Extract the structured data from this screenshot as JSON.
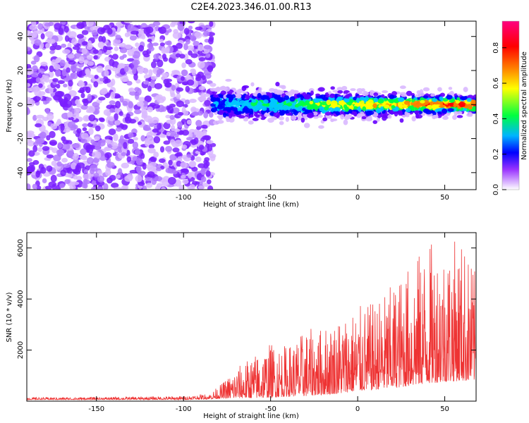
{
  "title": "C2E4.2023.346.01.00.R13",
  "chart_data": [
    {
      "type": "heatmap",
      "xlabel": "Height of straight line (km)",
      "ylabel": "Frequency (Hz)",
      "xlim": [
        -190,
        68
      ],
      "ylim": [
        -50,
        49
      ],
      "x_ticks": [
        -150,
        -100,
        -50,
        0,
        50
      ],
      "y_ticks": [
        -40,
        -20,
        0,
        20,
        40
      ],
      "grid": false,
      "colorbar": {
        "label": "Normalized spectral amplitude",
        "range": [
          0.0,
          0.95
        ],
        "ticks": [
          0.0,
          0.2,
          0.4,
          0.6,
          0.8
        ],
        "colors": [
          "#ffffff",
          "#6600ff",
          "#0000ff",
          "#00c8ff",
          "#00ff40",
          "#ffff00",
          "#ff8000",
          "#ff0000",
          "#ff0080"
        ]
      },
      "regions": [
        {
          "x": [
            -190,
            -83
          ],
          "description_level": 0.15,
          "spread_hz": 50
        },
        {
          "x": [
            -83,
            68
          ],
          "description_level": 0.6,
          "spread_hz": 5,
          "center_hz": 0
        }
      ]
    },
    {
      "type": "line",
      "xlabel": "Height of straight line (km)",
      "ylabel": "SNR (10 * v/v)",
      "xlim": [
        -190,
        68
      ],
      "ylim": [
        0,
        6600
      ],
      "x_ticks": [
        -150,
        -100,
        -50,
        0,
        50
      ],
      "y_ticks": [
        2000,
        4000,
        6000
      ],
      "color": "#ee3333",
      "grid": false,
      "envelope": {
        "x": [
          -190,
          -150,
          -100,
          -85,
          -78,
          -70,
          -60,
          -50,
          -40,
          -30,
          -20,
          -10,
          0,
          10,
          20,
          30,
          40,
          50,
          60,
          68
        ],
        "y_max": [
          150,
          160,
          200,
          300,
          700,
          1300,
          1800,
          2300,
          2200,
          2800,
          2900,
          3400,
          3700,
          3900,
          4600,
          5400,
          6200,
          6300,
          6400,
          5000
        ],
        "y_min": [
          60,
          60,
          60,
          80,
          100,
          120,
          120,
          140,
          180,
          200,
          250,
          300,
          400,
          450,
          500,
          600,
          700,
          750,
          800,
          800
        ]
      }
    }
  ]
}
